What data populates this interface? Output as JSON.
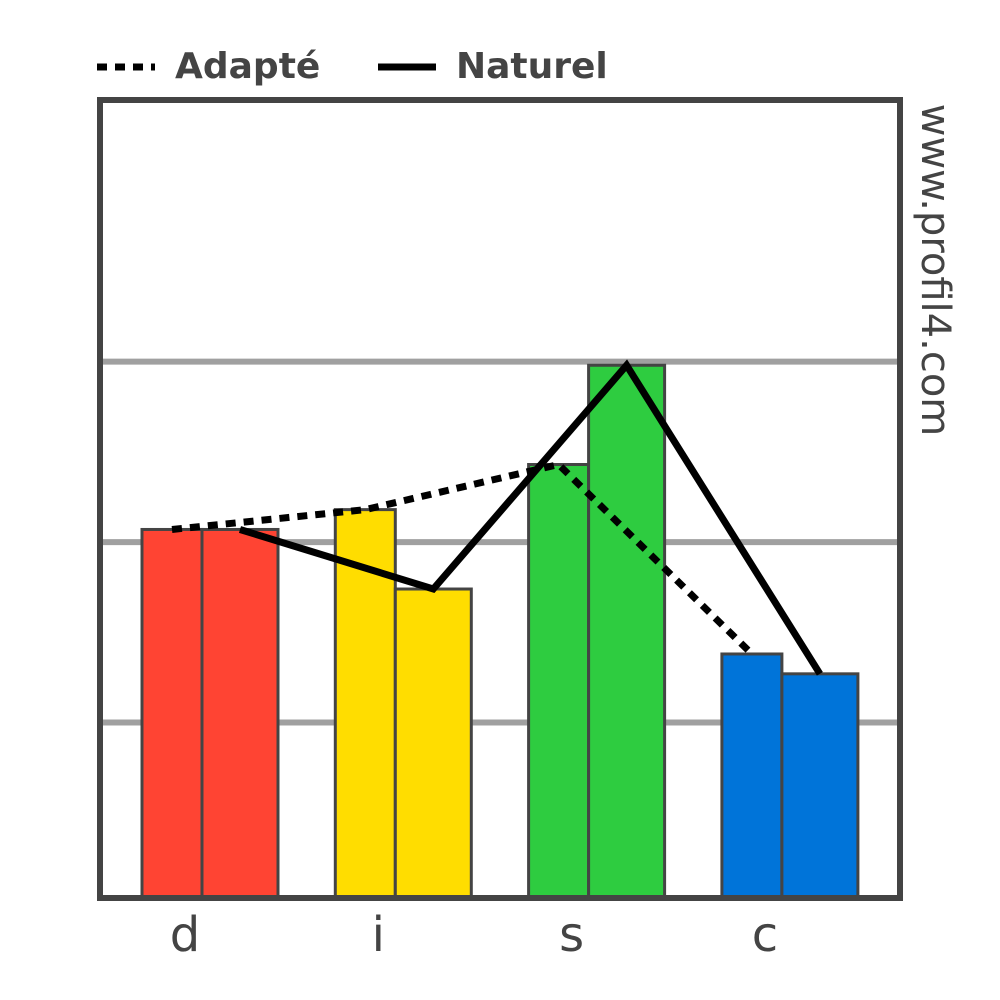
{
  "chart_data": {
    "type": "bar",
    "categories": [
      "d",
      "i",
      "s",
      "c"
    ],
    "colors": [
      "#ff4433",
      "#ffdd00",
      "#2ecc40",
      "#0074d9"
    ],
    "series": [
      {
        "name": "Adapté",
        "color": "#000000",
        "line_style": "dashed",
        "values": [
          2.07,
          2.18,
          2.43,
          1.38
        ]
      },
      {
        "name": "Naturel",
        "color": "#000000",
        "line_style": "solid",
        "values": [
          2.07,
          1.74,
          2.98,
          1.27
        ]
      }
    ],
    "ylim": [
      0,
      4.45
    ],
    "yticks": [
      1,
      2,
      3
    ],
    "grid": true,
    "watermark": "www.profil4.com"
  }
}
